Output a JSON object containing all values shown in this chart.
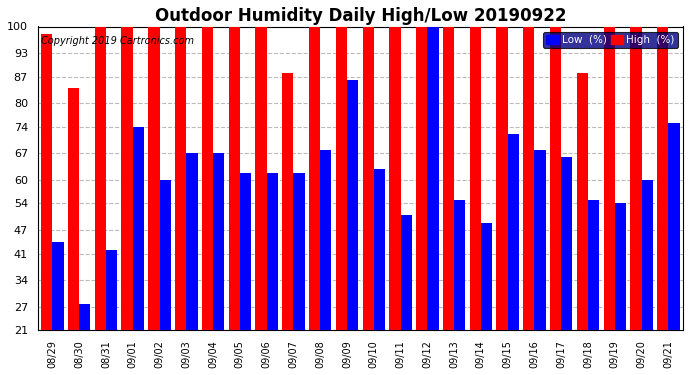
{
  "title": "Outdoor Humidity Daily High/Low 20190922",
  "copyright": "Copyright 2019 Cartronics.com",
  "dates": [
    "08/29",
    "08/30",
    "08/31",
    "09/01",
    "09/02",
    "09/03",
    "09/04",
    "09/05",
    "09/06",
    "09/07",
    "09/08",
    "09/09",
    "09/10",
    "09/11",
    "09/12",
    "09/13",
    "09/14",
    "09/15",
    "09/16",
    "09/17",
    "09/18",
    "09/19",
    "09/20",
    "09/21"
  ],
  "high": [
    98,
    84,
    100,
    100,
    100,
    100,
    100,
    100,
    100,
    88,
    100,
    100,
    100,
    100,
    100,
    100,
    100,
    100,
    100,
    100,
    88,
    100,
    100,
    100
  ],
  "low": [
    44,
    28,
    42,
    74,
    60,
    67,
    67,
    62,
    62,
    62,
    68,
    86,
    63,
    51,
    100,
    55,
    49,
    72,
    68,
    66,
    55,
    54,
    60,
    75
  ],
  "ymin": 21,
  "ymax": 100,
  "yticks": [
    21,
    27,
    34,
    41,
    47,
    54,
    60,
    67,
    74,
    80,
    87,
    93,
    100
  ],
  "bar_width": 0.42,
  "high_color": "#FF0000",
  "low_color": "#0000FF",
  "bg_color": "#FFFFFF",
  "grid_color": "#BBBBBB",
  "title_fontsize": 12,
  "copyright_fontsize": 7,
  "tick_fontsize": 8,
  "xlabel_fontsize": 7
}
